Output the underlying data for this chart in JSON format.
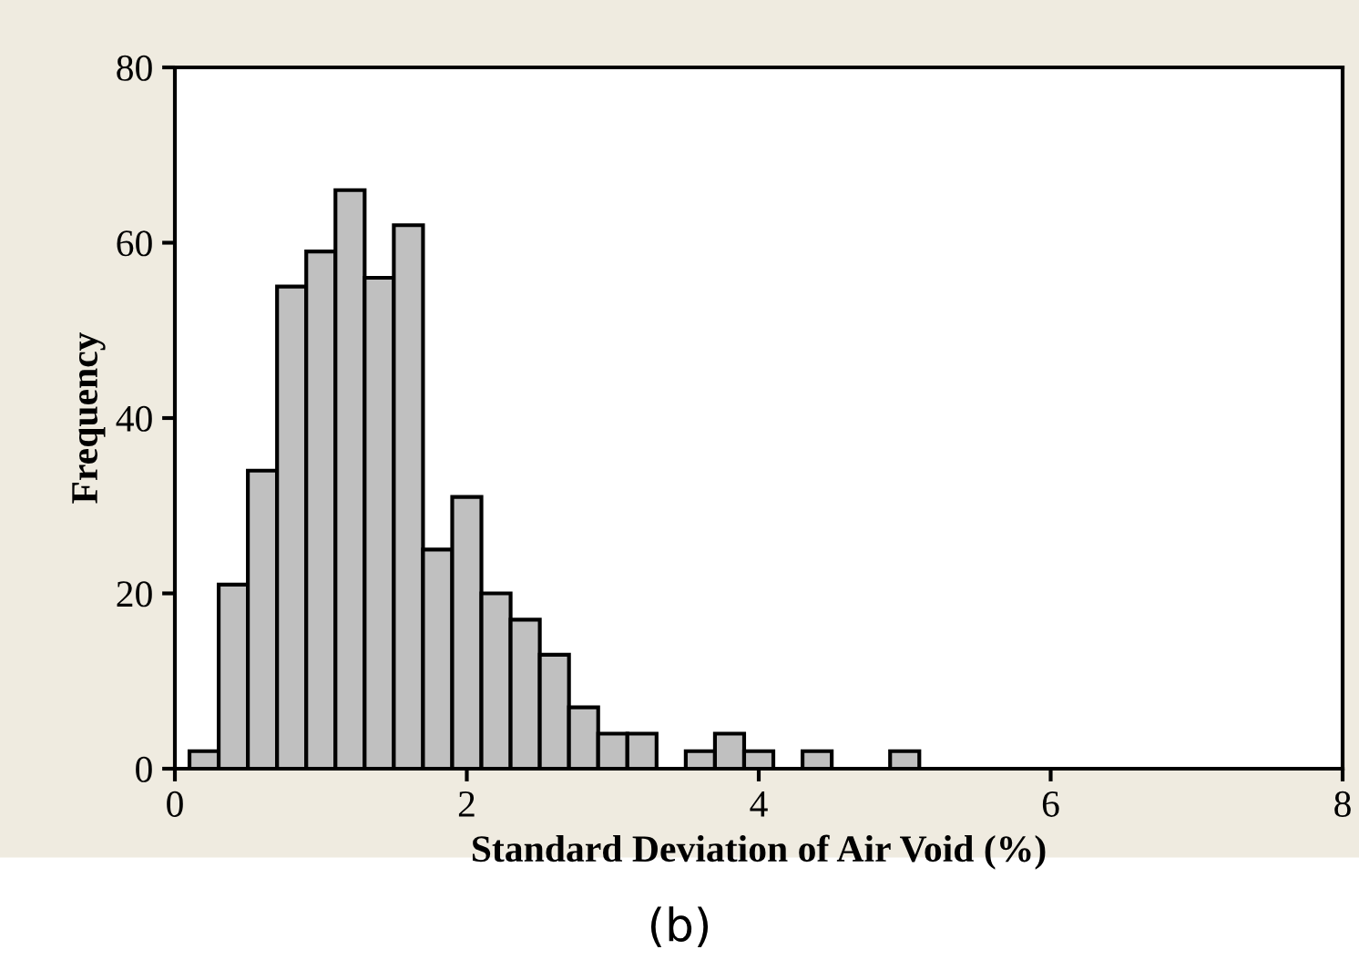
{
  "chart_data": {
    "type": "histogram",
    "xlabel": "Standard Deviation of Air Void (%)",
    "ylabel": "Frequency",
    "annotations": [
      "(b)"
    ],
    "bins": [
      0.1,
      0.3,
      0.5,
      0.7,
      0.9,
      1.1,
      1.3,
      1.5,
      1.7,
      1.9,
      2.1,
      2.3,
      2.5,
      2.7,
      2.9,
      3.1,
      3.3,
      3.5,
      3.7,
      3.9,
      4.1,
      4.3,
      4.5,
      4.7,
      4.9,
      5.1
    ],
    "values": [
      2,
      21,
      34,
      55,
      59,
      66,
      56,
      62,
      25,
      31,
      20,
      17,
      13,
      7,
      4,
      4,
      0,
      2,
      4,
      2,
      0,
      2,
      0,
      0,
      2
    ],
    "color": "#c0c0c0",
    "xlim": [
      0,
      8
    ],
    "xticks": [
      0,
      2,
      4,
      6,
      8
    ],
    "ylim": [
      0,
      80
    ],
    "yticks": [
      0,
      20,
      40,
      60,
      80
    ],
    "grid": false,
    "legend": false
  }
}
